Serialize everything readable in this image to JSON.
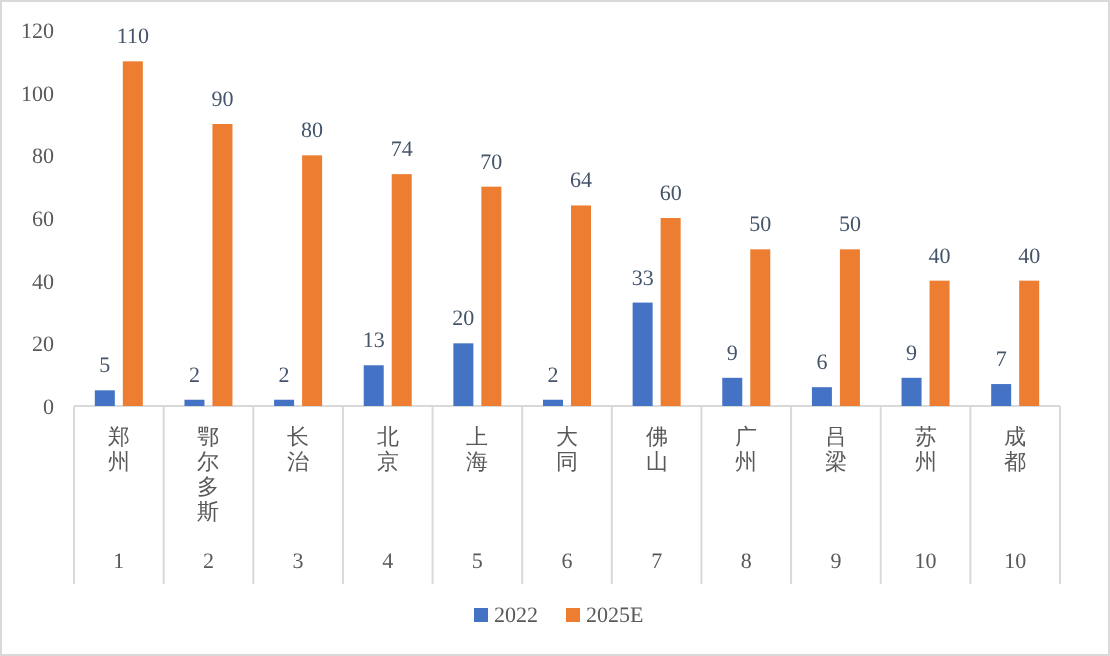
{
  "chart_data": {
    "type": "bar",
    "categories": [
      "郑州",
      "鄂尔多斯",
      "长治",
      "北京",
      "上海",
      "大同",
      "佛山",
      "广州",
      "吕梁",
      "苏州",
      "成都"
    ],
    "series": [
      {
        "name": "2022",
        "color": "#4472c4",
        "values": [
          5,
          2,
          2,
          13,
          20,
          2,
          33,
          9,
          6,
          9,
          7
        ]
      },
      {
        "name": "2025E",
        "color": "#ed7d31",
        "values": [
          110,
          90,
          80,
          74,
          70,
          64,
          60,
          50,
          50,
          40,
          40
        ]
      }
    ],
    "ylim": [
      0,
      120
    ],
    "yticks": [
      0,
      20,
      40,
      60,
      80,
      100,
      120
    ],
    "data_labels": true,
    "legend": "bottom",
    "grid": false,
    "annotations": [
      "1",
      "2",
      "3",
      "4",
      "5",
      "6",
      "7",
      "8",
      "9",
      "10",
      "10"
    ]
  }
}
